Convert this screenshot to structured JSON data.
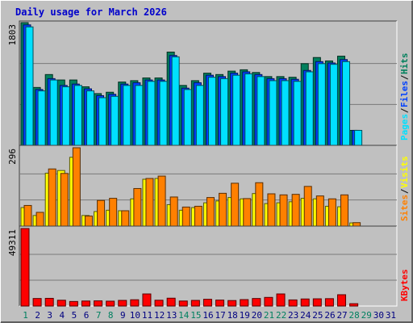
{
  "title": "Daily usage for March 2026",
  "colors": {
    "background": "#c0c0c0",
    "title": "#0000cc",
    "grid": "#7a7a7a",
    "hits": "#00805c",
    "files": "#0040ff",
    "pages": "#00e0ff",
    "visits": "#ffff00",
    "sites": "#ff8000",
    "kbytes": "#ff0000",
    "weekend": "#008060",
    "weekday": "#000080"
  },
  "chart_data": [
    {
      "type": "bar",
      "id": "hits-files-pages",
      "ymax_label": "1803",
      "ymax": 1803,
      "legend": [
        {
          "label": "Hits",
          "color": "#00805c"
        },
        {
          "label": "Files",
          "color": "#0040ff"
        },
        {
          "label": "Pages",
          "color": "#00e0ff"
        }
      ],
      "series": [
        {
          "name": "Hits",
          "values": [
            1803,
            850,
            1040,
            960,
            960,
            860,
            760,
            780,
            930,
            950,
            990,
            990,
            1370,
            880,
            950,
            1060,
            1040,
            1090,
            1110,
            1070,
            1010,
            1010,
            1000,
            1200,
            1290,
            1240,
            1310,
            220,
            0,
            0,
            0
          ]
        },
        {
          "name": "Files",
          "values": [
            1770,
            820,
            980,
            880,
            900,
            830,
            730,
            750,
            900,
            920,
            960,
            960,
            1320,
            840,
            920,
            1030,
            1010,
            1060,
            1080,
            1040,
            980,
            980,
            970,
            1100,
            1230,
            1210,
            1260,
            220,
            0,
            0,
            0
          ]
        },
        {
          "name": "Pages",
          "values": [
            1740,
            800,
            960,
            860,
            880,
            800,
            700,
            720,
            880,
            880,
            940,
            940,
            1300,
            820,
            880,
            1000,
            980,
            1030,
            1050,
            1010,
            950,
            950,
            940,
            1080,
            1200,
            1190,
            1230,
            220,
            0,
            0,
            0
          ]
        }
      ]
    },
    {
      "type": "bar",
      "id": "visits-sites",
      "ymax_label": "296",
      "ymax": 296,
      "legend": [
        {
          "label": "Visits",
          "color": "#ffff00"
        },
        {
          "label": "Sites",
          "color": "#ff8000"
        }
      ],
      "series": [
        {
          "name": "Visits",
          "values": [
            70,
            40,
            200,
            210,
            260,
            40,
            55,
            60,
            58,
            103,
            177,
            180,
            81,
            60,
            70,
            88,
            95,
            108,
            103,
            123,
            85,
            88,
            92,
            105,
            103,
            75,
            73,
            12,
            0,
            0,
            0
          ]
        },
        {
          "name": "Sites",
          "values": [
            78,
            52,
            216,
            199,
            296,
            38,
            97,
            105,
            58,
            142,
            180,
            189,
            110,
            72,
            75,
            108,
            124,
            162,
            104,
            164,
            122,
            118,
            120,
            150,
            114,
            103,
            118,
            13,
            0,
            0,
            0
          ]
        }
      ]
    },
    {
      "type": "bar",
      "id": "kbytes",
      "ymax_label": "49311",
      "ymax": 49311,
      "legend": [
        {
          "label": "KBytes",
          "color": "#ff0000"
        }
      ],
      "series": [
        {
          "name": "KBytes",
          "values": [
            49311,
            4800,
            4900,
            3700,
            2900,
            3200,
            3300,
            3100,
            3600,
            4000,
            7700,
            3700,
            5000,
            3200,
            3600,
            4300,
            3800,
            3500,
            4100,
            4800,
            5500,
            7700,
            3900,
            4500,
            4600,
            4700,
            7200,
            1500,
            0,
            0,
            0
          ]
        }
      ]
    }
  ],
  "days": [
    {
      "label": "1",
      "weekend": true
    },
    {
      "label": "2",
      "weekend": false
    },
    {
      "label": "3",
      "weekend": false
    },
    {
      "label": "4",
      "weekend": false
    },
    {
      "label": "5",
      "weekend": false
    },
    {
      "label": "6",
      "weekend": false
    },
    {
      "label": "7",
      "weekend": true
    },
    {
      "label": "8",
      "weekend": true
    },
    {
      "label": "9",
      "weekend": false
    },
    {
      "label": "10",
      "weekend": false
    },
    {
      "label": "11",
      "weekend": false
    },
    {
      "label": "12",
      "weekend": false
    },
    {
      "label": "13",
      "weekend": false
    },
    {
      "label": "14",
      "weekend": true
    },
    {
      "label": "15",
      "weekend": true
    },
    {
      "label": "16",
      "weekend": false
    },
    {
      "label": "17",
      "weekend": false
    },
    {
      "label": "18",
      "weekend": false
    },
    {
      "label": "19",
      "weekend": false
    },
    {
      "label": "20",
      "weekend": false
    },
    {
      "label": "21",
      "weekend": true
    },
    {
      "label": "22",
      "weekend": true
    },
    {
      "label": "23",
      "weekend": false
    },
    {
      "label": "24",
      "weekend": false
    },
    {
      "label": "25",
      "weekend": false
    },
    {
      "label": "26",
      "weekend": false
    },
    {
      "label": "27",
      "weekend": false
    },
    {
      "label": "28",
      "weekend": true
    },
    {
      "label": "29",
      "weekend": true
    },
    {
      "label": "30",
      "weekend": false
    },
    {
      "label": "31",
      "weekend": false
    }
  ]
}
